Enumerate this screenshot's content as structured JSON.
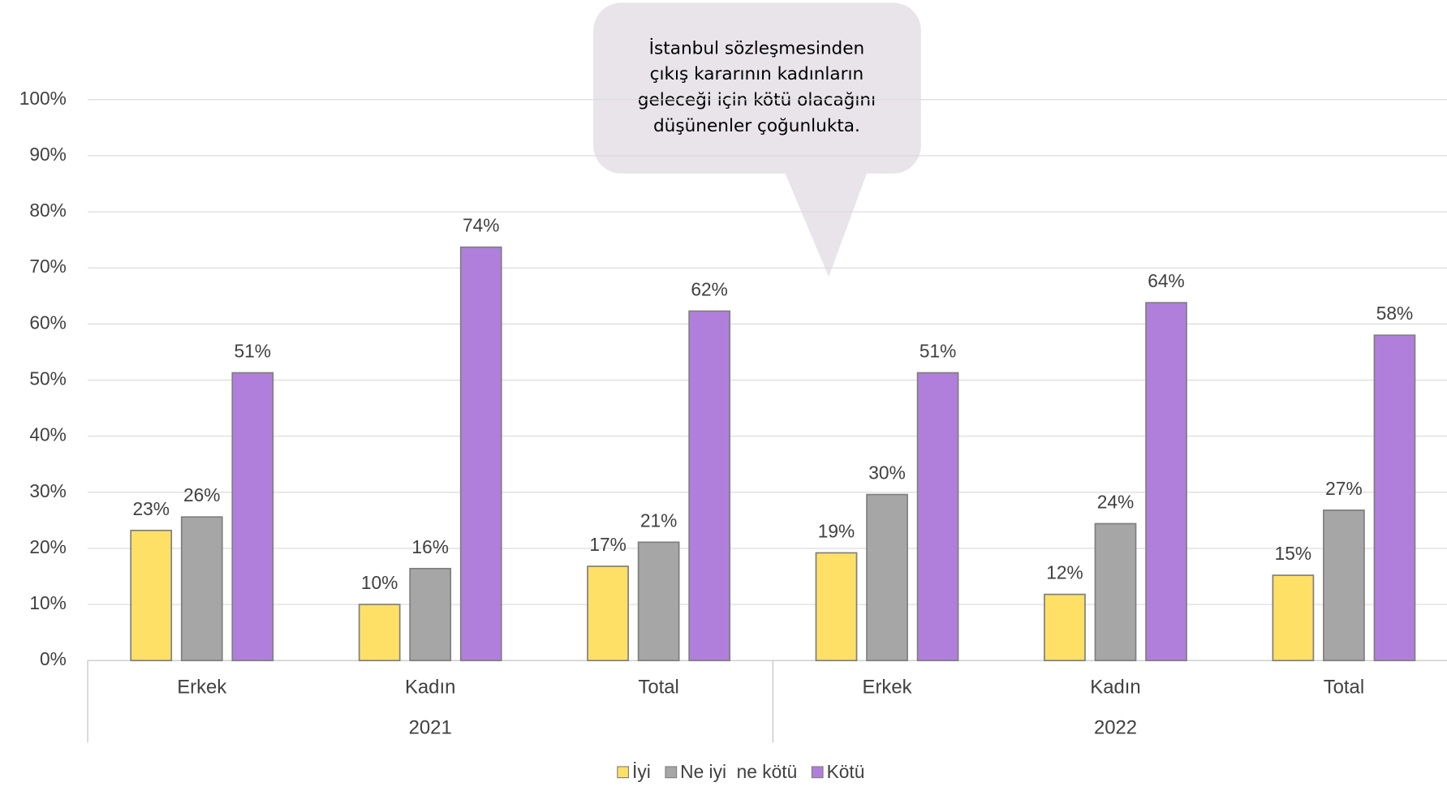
{
  "chart_data": {
    "type": "bar",
    "annotation": [
      "İstanbul sözleşmesinden",
      "çıkış kararının kadınların",
      "geleceği için kötü olacağını",
      "düşünenler çoğunlukta."
    ],
    "categories": [
      "Erkek",
      "Kadın",
      "Total",
      "Erkek",
      "Kadın",
      "Total"
    ],
    "groups": [
      "2021",
      "2022"
    ],
    "series": [
      {
        "name": "İyi",
        "color": "#ffe066",
        "values": [
          23.2,
          10.0,
          16.8,
          19.2,
          11.8,
          15.2
        ],
        "value_labels": [
          "23%",
          "10%",
          "17%",
          "19%",
          "12%",
          "15%"
        ]
      },
      {
        "name": "Ne iyi  ne kötü",
        "color": "#a6a6a6",
        "values": [
          25.6,
          16.4,
          21.1,
          29.6,
          24.4,
          26.8
        ],
        "value_labels": [
          "26%",
          "16%",
          "21%",
          "30%",
          "24%",
          "27%"
        ]
      },
      {
        "name": "Kötü",
        "color": "#b07fdb",
        "values": [
          51.3,
          73.7,
          62.3,
          51.3,
          63.8,
          58.0
        ],
        "value_labels": [
          "51%",
          "74%",
          "62%",
          "51%",
          "64%",
          "58%"
        ]
      }
    ],
    "ylim": [
      0,
      100
    ],
    "yticks": [
      {
        "value": 0,
        "label": "0%"
      },
      {
        "value": 10,
        "label": "10%"
      },
      {
        "value": 20,
        "label": "20%"
      },
      {
        "value": 30,
        "label": "30%"
      },
      {
        "value": 40,
        "label": "40%"
      },
      {
        "value": 50,
        "label": "50%"
      },
      {
        "value": 60,
        "label": "60%"
      },
      {
        "value": 70,
        "label": "70%"
      },
      {
        "value": 80,
        "label": "80%"
      },
      {
        "value": 90,
        "label": "90%"
      },
      {
        "value": 100,
        "label": "100%"
      }
    ],
    "grid": true,
    "legend": "bottom"
  }
}
